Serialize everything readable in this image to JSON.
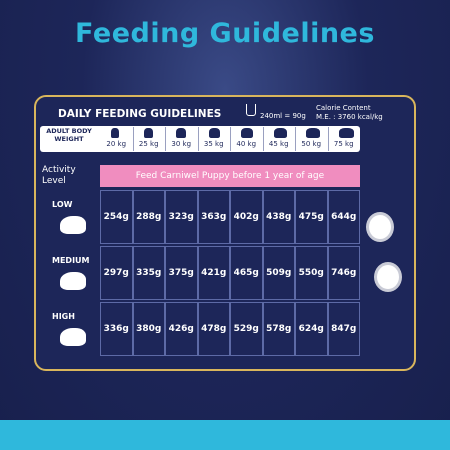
{
  "title": "Feeding Guidelines",
  "panel": {
    "heading": "DAILY FEEDING GUIDELINES",
    "measure": "240ml = 90g",
    "calorie_label": "Calorie Content",
    "calorie_value": "M.E. : 3760 kcal/kg"
  },
  "table": {
    "weight_label": "ADULT BODY WEIGHT",
    "weights": [
      "20 kg",
      "25 kg",
      "30 kg",
      "35 kg",
      "40 kg",
      "45 kg",
      "50 kg",
      "75 kg"
    ],
    "activity_label": "Activity Level",
    "banner": "Feed Carniwel Puppy before 1 year of age",
    "rows": [
      {
        "level": "LOW",
        "values": [
          "254g",
          "288g",
          "323g",
          "363g",
          "402g",
          "438g",
          "475g",
          "644g"
        ]
      },
      {
        "level": "MEDIUM",
        "values": [
          "297g",
          "335g",
          "375g",
          "421g",
          "465g",
          "509g",
          "550g",
          "746g"
        ]
      },
      {
        "level": "HIGH",
        "values": [
          "336g",
          "380g",
          "426g",
          "478g",
          "529g",
          "578g",
          "624g",
          "847g"
        ]
      }
    ]
  }
}
